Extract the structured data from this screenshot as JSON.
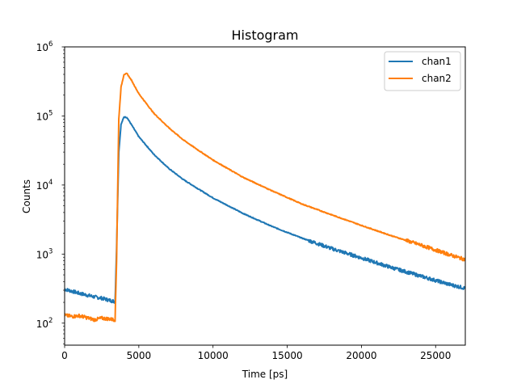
{
  "chart_data": {
    "type": "line",
    "title": "Histogram",
    "xlabel": "Time [ps]",
    "ylabel": "Counts",
    "yscale": "log",
    "xlim": [
      0,
      27000
    ],
    "ylim": [
      48,
      1000000
    ],
    "xticks": [
      0,
      5000,
      10000,
      15000,
      20000,
      25000
    ],
    "xtick_labels": [
      "0",
      "5000",
      "10000",
      "15000",
      "20000",
      "25000"
    ],
    "yticks": [
      100,
      1000,
      10000,
      100000,
      1000000
    ],
    "ytick_labels": [
      {
        "base": "10",
        "exp": "2"
      },
      {
        "base": "10",
        "exp": "3"
      },
      {
        "base": "10",
        "exp": "4"
      },
      {
        "base": "10",
        "exp": "5"
      },
      {
        "base": "10",
        "exp": "6"
      }
    ],
    "grid": false,
    "legend_position": "upper right",
    "series": [
      {
        "name": "chan1",
        "color": "#1f77b4",
        "x": [
          0,
          500,
          1000,
          1500,
          2000,
          2500,
          3000,
          3400,
          3500,
          3650,
          3800,
          4000,
          4200,
          4500,
          5000,
          6000,
          7000,
          8000,
          9000,
          10000,
          12000,
          14000,
          16000,
          18000,
          20000,
          22000,
          24000,
          26000,
          27000
        ],
        "y": [
          310,
          290,
          270,
          255,
          240,
          230,
          215,
          205,
          1200,
          30000,
          75000,
          97000,
          95000,
          75000,
          50000,
          28000,
          17500,
          12000,
          8800,
          6500,
          3900,
          2500,
          1700,
          1200,
          880,
          640,
          480,
          360,
          320
        ]
      },
      {
        "name": "chan2",
        "color": "#ff7f0e",
        "x": [
          0,
          500,
          1000,
          1500,
          2000,
          2500,
          3000,
          3400,
          3500,
          3650,
          3800,
          4000,
          4200,
          4500,
          5000,
          6000,
          7000,
          8000,
          9000,
          10000,
          12000,
          14000,
          16000,
          18000,
          20000,
          22000,
          24000,
          26000,
          27000
        ],
        "y": [
          130,
          125,
          128,
          120,
          112,
          118,
          115,
          112,
          800,
          90000,
          260000,
          400000,
          410000,
          330000,
          210000,
          110000,
          68000,
          45000,
          32000,
          23000,
          13000,
          8200,
          5300,
          3700,
          2600,
          1850,
          1350,
          970,
          830
        ]
      }
    ]
  }
}
